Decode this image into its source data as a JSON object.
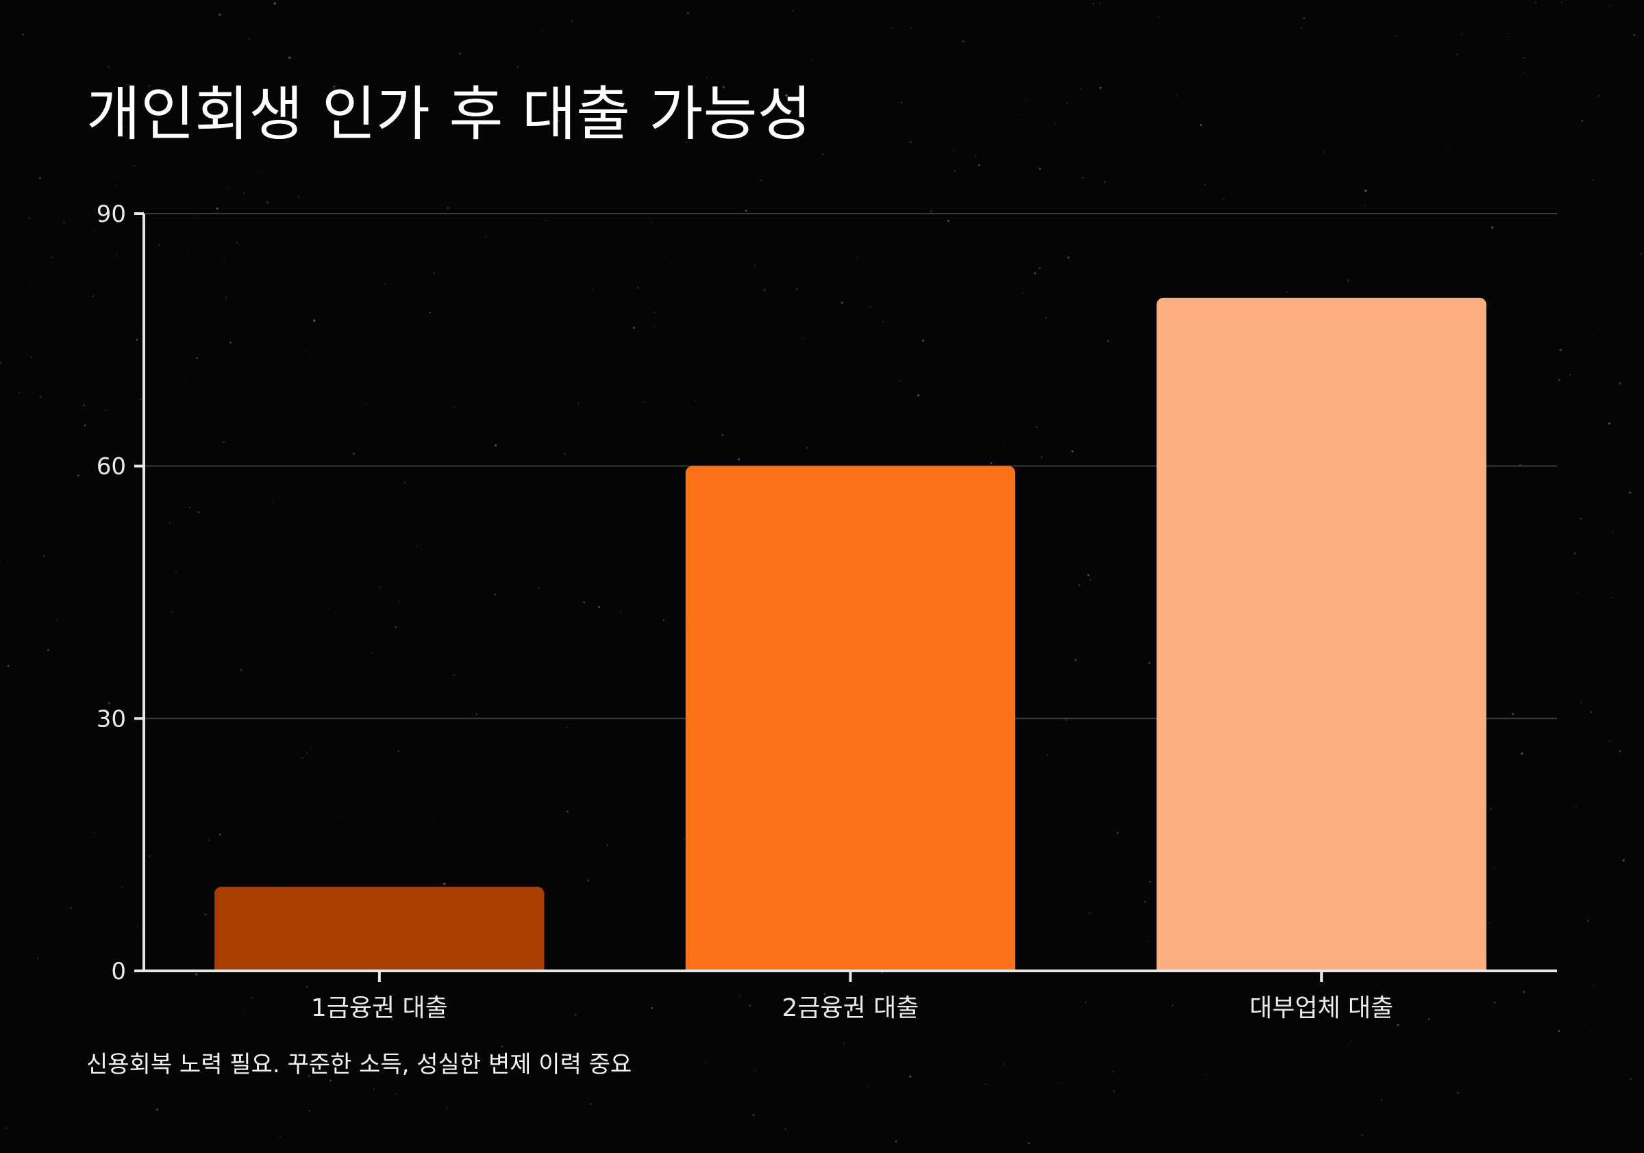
{
  "title": "개인회생 인가 후 대출 가능성",
  "footnote": "신용회복 노력 필요. 꾸준한 소득, 성실한 변제 이력 중요",
  "colors": {
    "background": "#050505",
    "grid": "#3a3a3a",
    "axis": "#e6e6e6",
    "bars": [
      "#a83f00",
      "#fd711b",
      "#fdae7e"
    ]
  },
  "chart_data": {
    "type": "bar",
    "categories": [
      "1금융권 대출",
      "2금융권 대출",
      "대부업체 대출"
    ],
    "values": [
      10,
      60,
      80
    ],
    "ylim": [
      0,
      90
    ],
    "yticks": [
      0,
      30,
      60,
      90
    ],
    "grid": true,
    "legend": "none"
  }
}
